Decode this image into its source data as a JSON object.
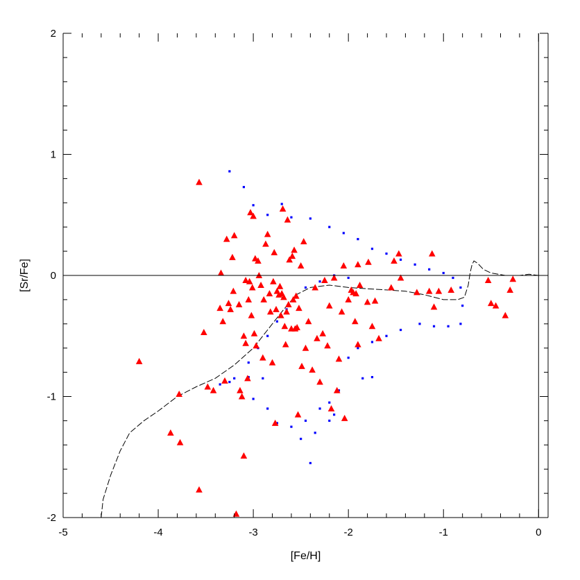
{
  "chart_data": {
    "type": "scatter",
    "title": "",
    "xlabel": "[Fe/H]",
    "ylabel": "[Sr/Fe]",
    "xlim": [
      -5,
      0.1
    ],
    "ylim": [
      -2,
      2
    ],
    "xticks": [
      -5,
      -4,
      -3,
      -2,
      -1,
      0
    ],
    "yticks": [
      -2,
      -1,
      0,
      1,
      2
    ],
    "xticklabels": [
      "-5",
      "-4",
      "-3",
      "-2",
      "-1",
      "0"
    ],
    "yticklabels": [
      "-2",
      "-1",
      "0",
      "1",
      "2"
    ],
    "grid": false,
    "reference_line": {
      "y": 0,
      "x": 0
    },
    "series": [
      {
        "marker": "triangle",
        "color": "#ff0000",
        "points": [
          [
            -4.2,
            -0.71
          ],
          [
            -3.87,
            -1.3
          ],
          [
            -3.78,
            -0.98
          ],
          [
            -3.77,
            -1.38
          ],
          [
            -3.57,
            0.77
          ],
          [
            -3.57,
            -1.77
          ],
          [
            -3.52,
            -0.47
          ],
          [
            -3.48,
            -0.92
          ],
          [
            -3.42,
            -0.95
          ],
          [
            -3.35,
            -0.27
          ],
          [
            -3.34,
            0.02
          ],
          [
            -3.32,
            -0.38
          ],
          [
            -3.3,
            -0.87
          ],
          [
            -3.28,
            0.3
          ],
          [
            -3.26,
            -0.23
          ],
          [
            -3.24,
            -0.28
          ],
          [
            -3.22,
            0.15
          ],
          [
            -3.21,
            -0.13
          ],
          [
            -3.2,
            0.33
          ],
          [
            -3.18,
            -1.97
          ],
          [
            -3.15,
            -0.24
          ],
          [
            -3.14,
            -0.95
          ],
          [
            -3.12,
            -1.0
          ],
          [
            -3.1,
            -0.5
          ],
          [
            -3.1,
            -1.49
          ],
          [
            -3.08,
            -0.04
          ],
          [
            -3.08,
            -0.56
          ],
          [
            -3.06,
            -0.85
          ],
          [
            -3.05,
            -0.2
          ],
          [
            -3.04,
            -0.05
          ],
          [
            -3.03,
            0.52
          ],
          [
            -3.02,
            -0.33
          ],
          [
            -3.01,
            -0.1
          ],
          [
            -3.0,
            0.49
          ],
          [
            -2.99,
            -0.48
          ],
          [
            -2.98,
            0.14
          ],
          [
            -2.97,
            -0.58
          ],
          [
            -2.95,
            0.12
          ],
          [
            -2.94,
            0.0
          ],
          [
            -2.92,
            -0.08
          ],
          [
            -2.9,
            -0.68
          ],
          [
            -2.89,
            -0.2
          ],
          [
            -2.87,
            0.26
          ],
          [
            -2.85,
            0.34
          ],
          [
            -2.83,
            -0.15
          ],
          [
            -2.82,
            -0.3
          ],
          [
            -2.8,
            -0.72
          ],
          [
            -2.79,
            -0.05
          ],
          [
            -2.78,
            0.19
          ],
          [
            -2.77,
            -1.22
          ],
          [
            -2.76,
            -0.28
          ],
          [
            -2.75,
            -0.13
          ],
          [
            -2.73,
            -0.16
          ],
          [
            -2.72,
            -0.09
          ],
          [
            -2.71,
            -0.33
          ],
          [
            -2.7,
            -0.15
          ],
          [
            -2.69,
            0.55
          ],
          [
            -2.68,
            -0.18
          ],
          [
            -2.67,
            -0.42
          ],
          [
            -2.66,
            -0.57
          ],
          [
            -2.65,
            -0.3
          ],
          [
            -2.64,
            0.46
          ],
          [
            -2.63,
            -0.24
          ],
          [
            -2.62,
            0.13
          ],
          [
            -2.6,
            -0.44
          ],
          [
            -2.59,
            0.16
          ],
          [
            -2.58,
            -0.2
          ],
          [
            -2.57,
            0.21
          ],
          [
            -2.56,
            -0.44
          ],
          [
            -2.55,
            -0.17
          ],
          [
            -2.54,
            -0.43
          ],
          [
            -2.53,
            -1.15
          ],
          [
            -2.52,
            -0.27
          ],
          [
            -2.5,
            0.08
          ],
          [
            -2.49,
            -0.75
          ],
          [
            -2.47,
            0.28
          ],
          [
            -2.45,
            -0.6
          ],
          [
            -2.42,
            -0.38
          ],
          [
            -2.38,
            -0.78
          ],
          [
            -2.35,
            -0.1
          ],
          [
            -2.33,
            -0.52
          ],
          [
            -2.3,
            -0.88
          ],
          [
            -2.27,
            -0.48
          ],
          [
            -2.25,
            -0.04
          ],
          [
            -2.22,
            -0.58
          ],
          [
            -2.2,
            -0.25
          ],
          [
            -2.18,
            -1.1
          ],
          [
            -2.15,
            -0.02
          ],
          [
            -2.12,
            -0.95
          ],
          [
            -2.1,
            -0.69
          ],
          [
            -2.07,
            -0.3
          ],
          [
            -2.05,
            0.08
          ],
          [
            -2.04,
            -1.18
          ],
          [
            -2.0,
            -0.2
          ],
          [
            -1.97,
            -0.12
          ],
          [
            -1.95,
            -0.14
          ],
          [
            -1.93,
            -0.38
          ],
          [
            -1.92,
            -0.15
          ],
          [
            -1.9,
            0.09
          ],
          [
            -1.9,
            -0.57
          ],
          [
            -1.88,
            -0.08
          ],
          [
            -1.8,
            -0.22
          ],
          [
            -1.79,
            0.11
          ],
          [
            -1.75,
            -0.42
          ],
          [
            -1.72,
            -0.21
          ],
          [
            -1.68,
            -0.52
          ],
          [
            -1.55,
            -0.1
          ],
          [
            -1.52,
            0.12
          ],
          [
            -1.47,
            0.18
          ],
          [
            -1.45,
            -0.02
          ],
          [
            -1.28,
            -0.14
          ],
          [
            -1.15,
            -0.13
          ],
          [
            -1.12,
            0.18
          ],
          [
            -1.1,
            -0.26
          ],
          [
            -1.05,
            -0.13
          ],
          [
            -0.92,
            -0.12
          ],
          [
            -0.53,
            -0.04
          ],
          [
            -0.5,
            -0.23
          ],
          [
            -0.45,
            -0.25
          ],
          [
            -0.35,
            -0.33
          ],
          [
            -0.3,
            -0.12
          ],
          [
            -0.27,
            -0.03
          ]
        ]
      },
      {
        "marker": "dot",
        "color": "#0000ff",
        "points": [
          [
            -3.25,
            0.86
          ],
          [
            -3.1,
            0.73
          ],
          [
            -2.7,
            0.59
          ],
          [
            -3.0,
            0.58
          ],
          [
            -2.85,
            0.5
          ],
          [
            -2.6,
            0.48
          ],
          [
            -2.4,
            0.47
          ],
          [
            -2.2,
            0.4
          ],
          [
            -2.05,
            0.35
          ],
          [
            -1.9,
            0.3
          ],
          [
            -1.75,
            0.22
          ],
          [
            -1.6,
            0.18
          ],
          [
            -1.45,
            0.13
          ],
          [
            -1.3,
            0.09
          ],
          [
            -1.15,
            0.05
          ],
          [
            -1.0,
            0.02
          ],
          [
            -0.9,
            -0.02
          ],
          [
            -0.82,
            -0.1
          ],
          [
            -0.8,
            -0.25
          ],
          [
            -0.82,
            -0.4
          ],
          [
            -0.95,
            -0.42
          ],
          [
            -1.1,
            -0.42
          ],
          [
            -1.25,
            -0.4
          ],
          [
            -1.45,
            -0.45
          ],
          [
            -1.6,
            -0.5
          ],
          [
            -1.75,
            -0.55
          ],
          [
            -1.9,
            -0.6
          ],
          [
            -2.0,
            -0.68
          ],
          [
            -1.85,
            -0.85
          ],
          [
            -1.75,
            -0.84
          ],
          [
            -2.1,
            -0.95
          ],
          [
            -2.2,
            -1.05
          ],
          [
            -2.3,
            -1.1
          ],
          [
            -2.45,
            -1.2
          ],
          [
            -2.6,
            -1.25
          ],
          [
            -2.75,
            -1.22
          ],
          [
            -2.85,
            -1.1
          ],
          [
            -3.0,
            -1.02
          ],
          [
            -3.15,
            -0.96
          ],
          [
            -3.25,
            -0.88
          ],
          [
            -3.35,
            -0.9
          ],
          [
            -3.2,
            -0.85
          ],
          [
            -3.05,
            -0.84
          ],
          [
            -2.9,
            -0.85
          ],
          [
            -2.4,
            -1.55
          ],
          [
            -2.5,
            -1.35
          ],
          [
            -2.35,
            -1.3
          ],
          [
            -2.2,
            -1.2
          ],
          [
            -2.15,
            -1.15
          ],
          [
            -3.05,
            -0.72
          ],
          [
            -2.95,
            -0.6
          ],
          [
            -2.85,
            -0.5
          ],
          [
            -2.75,
            -0.38
          ],
          [
            -2.65,
            -0.28
          ],
          [
            -2.55,
            -0.18
          ],
          [
            -2.45,
            -0.1
          ],
          [
            -2.3,
            -0.05
          ],
          [
            -2.15,
            0.0
          ],
          [
            -2.0,
            -0.02
          ]
        ]
      }
    ],
    "model_curve": {
      "style": "dashed",
      "points": [
        [
          -4.6,
          -2.0
        ],
        [
          -4.58,
          -1.85
        ],
        [
          -4.5,
          -1.65
        ],
        [
          -4.4,
          -1.45
        ],
        [
          -4.3,
          -1.3
        ],
        [
          -4.15,
          -1.2
        ],
        [
          -4.0,
          -1.12
        ],
        [
          -3.8,
          -1.0
        ],
        [
          -3.6,
          -0.92
        ],
        [
          -3.4,
          -0.85
        ],
        [
          -3.2,
          -0.74
        ],
        [
          -3.0,
          -0.6
        ],
        [
          -2.85,
          -0.45
        ],
        [
          -2.7,
          -0.3
        ],
        [
          -2.55,
          -0.16
        ],
        [
          -2.4,
          -0.1
        ],
        [
          -2.2,
          -0.08
        ],
        [
          -2.0,
          -0.1
        ],
        [
          -1.8,
          -0.11
        ],
        [
          -1.6,
          -0.12
        ],
        [
          -1.4,
          -0.13
        ],
        [
          -1.2,
          -0.16
        ],
        [
          -1.0,
          -0.2
        ],
        [
          -0.85,
          -0.2
        ],
        [
          -0.78,
          -0.18
        ],
        [
          -0.74,
          -0.08
        ],
        [
          -0.72,
          0.02
        ],
        [
          -0.7,
          0.09
        ],
        [
          -0.68,
          0.12
        ],
        [
          -0.64,
          0.1
        ],
        [
          -0.58,
          0.05
        ],
        [
          -0.5,
          0.02
        ],
        [
          -0.35,
          0.0
        ],
        [
          -0.2,
          0.0
        ],
        [
          -0.1,
          0.01
        ],
        [
          0.0,
          0.0
        ]
      ]
    }
  }
}
